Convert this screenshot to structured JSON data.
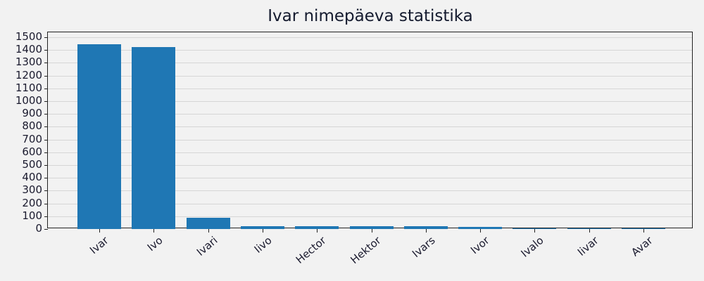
{
  "chart_data": {
    "type": "bar",
    "title": "Ivar nimepäeva statistika",
    "xlabel": "",
    "ylabel": "",
    "categories": [
      "Ivar",
      "Ivo",
      "Ivari",
      "Iivo",
      "Hector",
      "Hektor",
      "Ivars",
      "Ivor",
      "Ivalo",
      "Iivar",
      "Avar"
    ],
    "values": [
      1445,
      1423,
      88,
      22,
      22,
      22,
      22,
      16,
      5,
      5,
      5
    ],
    "ylim": [
      0,
      1540
    ],
    "yticks": [
      0,
      100,
      200,
      300,
      400,
      500,
      600,
      700,
      800,
      900,
      1000,
      1100,
      1200,
      1300,
      1400,
      1500
    ],
    "grid": true,
    "bar_color": "#1f77b4",
    "legend": null
  }
}
